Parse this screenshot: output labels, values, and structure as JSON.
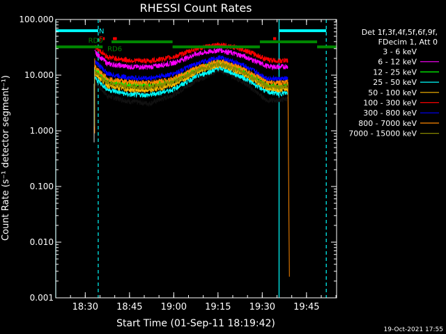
{
  "chart_data": {
    "type": "line",
    "title": "RHESSI Count Rates",
    "xlabel": "Start Time (01-Sep-11 18:19:42)",
    "ylabel": "Count Rate (s⁻¹ detector segment⁻¹)",
    "yscale": "log",
    "ylim": [
      0.001,
      100
    ],
    "xlim_minutes_after_start": [
      0.3,
      95.5
    ],
    "x_ticks": [
      {
        "label": "18:30",
        "t": 10.3
      },
      {
        "label": "18:45",
        "t": 25.3
      },
      {
        "label": "19:00",
        "t": 40.3
      },
      {
        "label": "19:15",
        "t": 55.3
      },
      {
        "label": "19:30",
        "t": 70.3
      },
      {
        "label": "19:45",
        "t": 85.3
      }
    ],
    "y_ticks": [
      {
        "label": "100.000",
        "v": 100
      },
      {
        "label": "10.000",
        "v": 10
      },
      {
        "label": "1.000",
        "v": 1
      },
      {
        "label": "0.100",
        "v": 0.1
      },
      {
        "label": "0.010",
        "v": 0.01
      },
      {
        "label": "0.001",
        "v": 0.001
      }
    ],
    "legend": {
      "placement": "right",
      "header": [
        "Det 1f,3f,4f,5f,6f,9f,",
        "FDecim 1, Att 0"
      ],
      "entries": [
        {
          "label": "3 - 6 keV",
          "color": "#000000"
        },
        {
          "label": "6 - 12 keV",
          "color": "#ff00ff"
        },
        {
          "label": "12 - 25 keV",
          "color": "#00ff00"
        },
        {
          "label": "25 - 50 keV",
          "color": "#00ffff"
        },
        {
          "label": "50 - 100 keV",
          "color": "#ffbb00"
        },
        {
          "label": "100 - 300 keV",
          "color": "#ff0000"
        },
        {
          "label": "300 - 800 keV",
          "color": "#0000ff"
        },
        {
          "label": "800 - 7000 keV",
          "color": "#ff8800"
        },
        {
          "label": "7000 - 15000 keV",
          "color": "#888800"
        }
      ]
    },
    "series": [
      {
        "name": "3 - 6 keV",
        "color": "#000000",
        "values": [
          [
            13.5,
            7.5
          ],
          [
            18,
            4.2
          ],
          [
            25,
            3.4
          ],
          [
            32,
            3.1
          ],
          [
            40,
            4.4
          ],
          [
            48,
            8.0
          ],
          [
            56,
            12.5
          ],
          [
            64,
            7.5
          ],
          [
            72,
            3.5
          ],
          [
            76,
            3.6
          ],
          [
            79,
            3.8
          ]
        ]
      },
      {
        "name": "6 - 12 keV",
        "color": "#ff00ff",
        "values": [
          [
            13.5,
            26
          ],
          [
            18,
            16
          ],
          [
            25,
            14.2
          ],
          [
            32,
            14
          ],
          [
            40,
            16.5
          ],
          [
            48,
            24
          ],
          [
            56,
            28.5
          ],
          [
            64,
            22
          ],
          [
            72,
            14.5
          ],
          [
            76,
            14
          ],
          [
            79,
            14.5
          ]
        ]
      },
      {
        "name": "12 - 25 keV",
        "color": "#00ff00",
        "values": [
          [
            13.5,
            13
          ],
          [
            18,
            8.0
          ],
          [
            25,
            6.8
          ],
          [
            32,
            6.5
          ],
          [
            40,
            8.0
          ],
          [
            48,
            13
          ],
          [
            56,
            17
          ],
          [
            64,
            12
          ],
          [
            72,
            6.6
          ],
          [
            76,
            6.4
          ],
          [
            79,
            6.6
          ]
        ]
      },
      {
        "name": "25 - 50 keV",
        "color": "#00ffff",
        "values": [
          [
            13.5,
            9
          ],
          [
            18,
            5.5
          ],
          [
            25,
            4.5
          ],
          [
            32,
            4.4
          ],
          [
            40,
            5.5
          ],
          [
            48,
            9.5
          ],
          [
            56,
            13.5
          ],
          [
            64,
            9.0
          ],
          [
            72,
            5.0
          ],
          [
            76,
            4.7
          ],
          [
            79,
            4.8
          ]
        ]
      },
      {
        "name": "50 - 100 keV",
        "color": "#ffbb00",
        "values": [
          [
            13.5,
            11
          ],
          [
            18,
            6.5
          ],
          [
            25,
            5.5
          ],
          [
            32,
            5.3
          ],
          [
            40,
            6.7
          ],
          [
            48,
            11.5
          ],
          [
            56,
            15.5
          ],
          [
            64,
            10.5
          ],
          [
            72,
            5.8
          ],
          [
            76,
            5.5
          ],
          [
            79,
            5.7
          ]
        ]
      },
      {
        "name": "100 - 300 keV",
        "color": "#ff0000",
        "values": [
          [
            13.5,
            33
          ],
          [
            18,
            21
          ],
          [
            25,
            18.5
          ],
          [
            32,
            18
          ],
          [
            40,
            21
          ],
          [
            48,
            30
          ],
          [
            56,
            36
          ],
          [
            64,
            29
          ],
          [
            72,
            19
          ],
          [
            76,
            18
          ],
          [
            79,
            18.5
          ]
        ]
      },
      {
        "name": "300 - 800 keV",
        "color": "#0000ff",
        "values": [
          [
            13.5,
            18
          ],
          [
            18,
            10.5
          ],
          [
            25,
            9.0
          ],
          [
            32,
            8.8
          ],
          [
            40,
            10.5
          ],
          [
            48,
            16
          ],
          [
            56,
            21
          ],
          [
            64,
            15
          ],
          [
            72,
            8.8
          ],
          [
            76,
            8.5
          ],
          [
            79,
            8.7
          ]
        ]
      },
      {
        "name": "800 - 7000 keV",
        "color": "#ff8800",
        "values": [
          [
            13.5,
            14
          ],
          [
            18,
            8.5
          ],
          [
            25,
            7.5
          ],
          [
            32,
            7.3
          ],
          [
            40,
            8.6
          ],
          [
            48,
            13.5
          ],
          [
            56,
            18
          ],
          [
            64,
            12.8
          ],
          [
            72,
            7.4
          ],
          [
            76,
            7.2
          ],
          [
            79,
            7.5
          ],
          [
            79.5,
            0.0024
          ]
        ]
      },
      {
        "name": "7000 - 15000 keV",
        "color": "#888800",
        "values": [
          [
            13.5,
            11.5
          ],
          [
            18,
            7.2
          ],
          [
            25,
            6.2
          ],
          [
            32,
            6.0
          ],
          [
            40,
            7.3
          ],
          [
            48,
            12
          ],
          [
            56,
            16
          ],
          [
            64,
            11.2
          ],
          [
            72,
            6.3
          ],
          [
            76,
            6.1
          ],
          [
            79,
            6.3
          ]
        ]
      }
    ],
    "vertical_lines": [
      {
        "t": 0.3,
        "style": "solid",
        "color": "#00ffff"
      },
      {
        "t": 14.7,
        "style": "dashed",
        "color": "#00ffff"
      },
      {
        "t": 76.0,
        "style": "solid",
        "color": "#00ffff"
      },
      {
        "t": 92.0,
        "style": "dashed",
        "color": "#00ffff"
      }
    ],
    "flag_bars": [
      {
        "label": "",
        "color": "#00ffff",
        "y": 62.9,
        "segments": [
          [
            0.3,
            14.7
          ],
          [
            76.0,
            92.0
          ]
        ]
      },
      {
        "label": "N",
        "color": "#00ffff",
        "y": 62.9,
        "segments": []
      },
      {
        "label": "F",
        "color": "#ff0000",
        "y": 45.3,
        "segments": [
          [
            16.3,
            16.9
          ],
          [
            19.7,
            21.0
          ],
          [
            74.0,
            75.0
          ]
        ]
      },
      {
        "label": "",
        "color": "#ff0000",
        "y": 45.3,
        "segments": []
      },
      {
        "label": "RD0",
        "color": "#008800",
        "y": 32.2,
        "segments": [
          [
            0.3,
            16.2
          ]
        ]
      },
      {
        "label": "",
        "color": "#008800",
        "y": 39.6,
        "segments": [
          [
            19.2,
            39.9
          ],
          [
            69.5,
            88.9
          ]
        ]
      },
      {
        "label": "RD6",
        "color": "#008800",
        "y": 32.2,
        "segments": [
          [
            39.9,
            69.5
          ],
          [
            88.9,
            95.5
          ]
        ]
      }
    ]
  },
  "footer": {
    "timestamp": "19-Oct-2021 17:55"
  }
}
